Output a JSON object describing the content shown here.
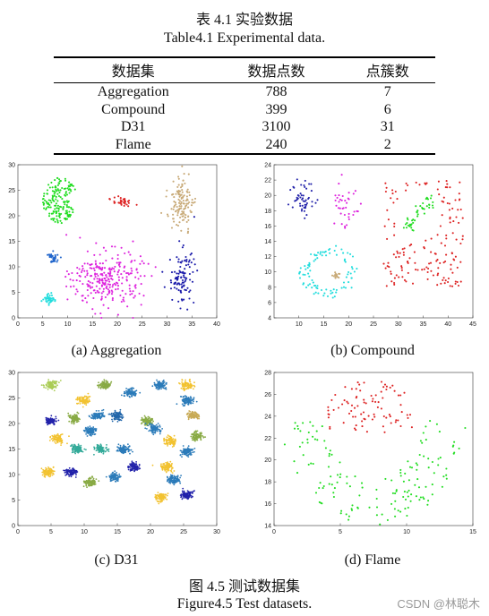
{
  "table": {
    "title_cn": "表 4.1  实验数据",
    "title_en": "Table4.1 Experimental data.",
    "headers": [
      "数据集",
      "数据点数",
      "点簇数"
    ],
    "rows": [
      [
        "Aggregation",
        "788",
        "7"
      ],
      [
        "Compound",
        "399",
        "6"
      ],
      [
        "D31",
        "3100",
        "31"
      ],
      [
        "Flame",
        "240",
        "2"
      ]
    ]
  },
  "figure": {
    "caption_cn": "图 4.5 测试数据集",
    "caption_en": "Figure4.5 Test datasets."
  },
  "watermark": "CSDN @林聪木",
  "chart_data": [
    {
      "type": "scatter",
      "caption": "(a) Aggregation",
      "xlim": [
        0,
        40
      ],
      "ylim": [
        0,
        30
      ],
      "xticks": [
        0,
        5,
        10,
        15,
        20,
        25,
        30,
        35,
        40
      ],
      "yticks": [
        0,
        5,
        10,
        15,
        20,
        25,
        30
      ],
      "clusters": [
        {
          "color": "#22dd22",
          "center": [
            8.5,
            23
          ],
          "spread": [
            3.5,
            4.5
          ],
          "count": 170,
          "shape": "moon"
        },
        {
          "color": "#dd2222",
          "center": [
            21,
            22.8
          ],
          "spread": [
            1.8,
            1.3
          ],
          "count": 34
        },
        {
          "color": "#c8aa78",
          "center": [
            32.8,
            22
          ],
          "spread": [
            2.5,
            5.5
          ],
          "count": 130
        },
        {
          "color": "#2266cc",
          "center": [
            7,
            11.5
          ],
          "spread": [
            1.3,
            1.2
          ],
          "count": 34
        },
        {
          "color": "#22dddd",
          "center": [
            6.3,
            3.5
          ],
          "spread": [
            1.2,
            1.2
          ],
          "count": 45
        },
        {
          "color": "#dd22dd",
          "center": [
            18,
            7.5
          ],
          "spread": [
            7,
            5.5
          ],
          "count": 273
        },
        {
          "color": "#1a1aaa",
          "center": [
            33,
            8
          ],
          "spread": [
            2.6,
            5.5
          ],
          "count": 102
        }
      ]
    },
    {
      "type": "scatter",
      "caption": "(b) Compound",
      "xlim": [
        5,
        45
      ],
      "ylim": [
        4,
        24
      ],
      "xticks": [
        10,
        15,
        20,
        25,
        30,
        35,
        40,
        45
      ],
      "yticks": [
        4,
        6,
        8,
        10,
        12,
        14,
        16,
        18,
        20,
        22,
        24
      ],
      "clusters": [
        {
          "color": "#2222aa",
          "center": [
            11,
            19.5
          ],
          "spread": [
            2.5,
            2.5
          ],
          "count": 50
        },
        {
          "color": "#dd22dd",
          "center": [
            19,
            19
          ],
          "spread": [
            2.5,
            3
          ],
          "count": 38
        },
        {
          "color": "#22dd22",
          "center": [
            34,
            17.5
          ],
          "spread": [
            3,
            2.5
          ],
          "count": 45,
          "shape": "wave"
        },
        {
          "color": "#dd2222",
          "center": [
            35,
            15
          ],
          "spread": [
            8,
            7
          ],
          "count": 158,
          "shape": "grid"
        },
        {
          "color": "#22dddd",
          "center": [
            16,
            10
          ],
          "spread": [
            6,
            3.5
          ],
          "count": 92,
          "shape": "ring"
        },
        {
          "color": "#c8aa78",
          "center": [
            17.5,
            9.8
          ],
          "spread": [
            1.2,
            0.7
          ],
          "count": 16
        }
      ]
    },
    {
      "type": "scatter",
      "caption": "(c) D31",
      "xlim": [
        0,
        30
      ],
      "ylim": [
        0,
        30
      ],
      "xticks": [
        0,
        5,
        10,
        15,
        20,
        25,
        30
      ],
      "yticks": [
        0,
        5,
        10,
        15,
        20,
        25,
        30
      ],
      "clusters": [
        {
          "color": "#aacc55",
          "center": [
            5,
            27.5
          ],
          "spread": [
            0.9,
            0.8
          ],
          "count": 100
        },
        {
          "color": "#f2c230",
          "center": [
            10,
            24.5
          ],
          "spread": [
            0.9,
            0.8
          ],
          "count": 100
        },
        {
          "color": "#88aa44",
          "center": [
            13,
            27.5
          ],
          "spread": [
            0.9,
            0.8
          ],
          "count": 100
        },
        {
          "color": "#2b7bb9",
          "center": [
            17,
            26
          ],
          "spread": [
            0.9,
            0.8
          ],
          "count": 100
        },
        {
          "color": "#2b7bb9",
          "center": [
            21.5,
            27.5
          ],
          "spread": [
            0.9,
            0.8
          ],
          "count": 100
        },
        {
          "color": "#f2c230",
          "center": [
            25.5,
            27.5
          ],
          "spread": [
            0.9,
            0.8
          ],
          "count": 100
        },
        {
          "color": "#2222aa",
          "center": [
            5,
            20.5
          ],
          "spread": [
            0.9,
            0.8
          ],
          "count": 100
        },
        {
          "color": "#88aa44",
          "center": [
            8.5,
            21
          ],
          "spread": [
            0.9,
            0.8
          ],
          "count": 100
        },
        {
          "color": "#2b7bb9",
          "center": [
            12,
            21.5
          ],
          "spread": [
            0.9,
            0.8
          ],
          "count": 100
        },
        {
          "color": "#2266aa",
          "center": [
            15,
            21.5
          ],
          "spread": [
            0.9,
            0.8
          ],
          "count": 100
        },
        {
          "color": "#88aa44",
          "center": [
            19.5,
            20.5
          ],
          "spread": [
            0.9,
            0.8
          ],
          "count": 100
        },
        {
          "color": "#2b7bb9",
          "center": [
            25.5,
            24.5
          ],
          "spread": [
            0.9,
            0.8
          ],
          "count": 100
        },
        {
          "color": "#c8aa55",
          "center": [
            26.5,
            21.5
          ],
          "spread": [
            0.9,
            0.8
          ],
          "count": 100
        },
        {
          "color": "#f2c230",
          "center": [
            6,
            17
          ],
          "spread": [
            0.9,
            0.8
          ],
          "count": 100
        },
        {
          "color": "#2b7bb9",
          "center": [
            11,
            18.5
          ],
          "spread": [
            0.9,
            0.8
          ],
          "count": 100
        },
        {
          "color": "#33aa99",
          "center": [
            9,
            15
          ],
          "spread": [
            0.9,
            0.8
          ],
          "count": 100
        },
        {
          "color": "#33aa99",
          "center": [
            12.5,
            15
          ],
          "spread": [
            0.9,
            0.8
          ],
          "count": 100
        },
        {
          "color": "#2b7bb9",
          "center": [
            16,
            15
          ],
          "spread": [
            0.9,
            0.8
          ],
          "count": 100
        },
        {
          "color": "#f2c230",
          "center": [
            23,
            16.5
          ],
          "spread": [
            0.9,
            0.8
          ],
          "count": 100
        },
        {
          "color": "#88aa44",
          "center": [
            27,
            17.5
          ],
          "spread": [
            0.9,
            0.8
          ],
          "count": 100
        },
        {
          "color": "#2b7bb9",
          "center": [
            20.5,
            19
          ],
          "spread": [
            0.9,
            0.8
          ],
          "count": 100
        },
        {
          "color": "#2b7bb9",
          "center": [
            25.5,
            14.5
          ],
          "spread": [
            0.9,
            0.8
          ],
          "count": 100
        },
        {
          "color": "#f2c230",
          "center": [
            4.5,
            10.5
          ],
          "spread": [
            0.9,
            0.8
          ],
          "count": 100
        },
        {
          "color": "#2222aa",
          "center": [
            8,
            10.5
          ],
          "spread": [
            0.9,
            0.8
          ],
          "count": 100
        },
        {
          "color": "#88aa44",
          "center": [
            11,
            8.5
          ],
          "spread": [
            0.9,
            0.8
          ],
          "count": 100
        },
        {
          "color": "#2b7bb9",
          "center": [
            14.5,
            9.5
          ],
          "spread": [
            0.9,
            0.8
          ],
          "count": 100
        },
        {
          "color": "#2222aa",
          "center": [
            17.5,
            11.5
          ],
          "spread": [
            0.9,
            0.8
          ],
          "count": 100
        },
        {
          "color": "#f2c230",
          "center": [
            22.5,
            11.5
          ],
          "spread": [
            0.9,
            0.8
          ],
          "count": 100
        },
        {
          "color": "#2b7bb9",
          "center": [
            23.5,
            9
          ],
          "spread": [
            0.9,
            0.8
          ],
          "count": 100
        },
        {
          "color": "#f2c230",
          "center": [
            21.5,
            5.5
          ],
          "spread": [
            0.9,
            0.8
          ],
          "count": 100
        },
        {
          "color": "#2222aa",
          "center": [
            25.5,
            6
          ],
          "spread": [
            0.9,
            0.8
          ],
          "count": 100
        }
      ]
    },
    {
      "type": "scatter",
      "caption": "(d) Flame",
      "xlim": [
        0,
        15
      ],
      "ylim": [
        14,
        28
      ],
      "xticks": [
        0,
        5,
        10,
        15
      ],
      "yticks": [
        14,
        16,
        18,
        20,
        22,
        24,
        26,
        28
      ],
      "clusters": [
        {
          "color": "#dd2222",
          "center": [
            7.3,
            24.8
          ],
          "spread": [
            3.6,
            2.6
          ],
          "count": 87,
          "shape": "cap"
        },
        {
          "color": "#22dd22",
          "center": [
            7.5,
            18
          ],
          "spread": [
            7,
            4
          ],
          "count": 153,
          "shape": "bowl"
        }
      ]
    }
  ]
}
